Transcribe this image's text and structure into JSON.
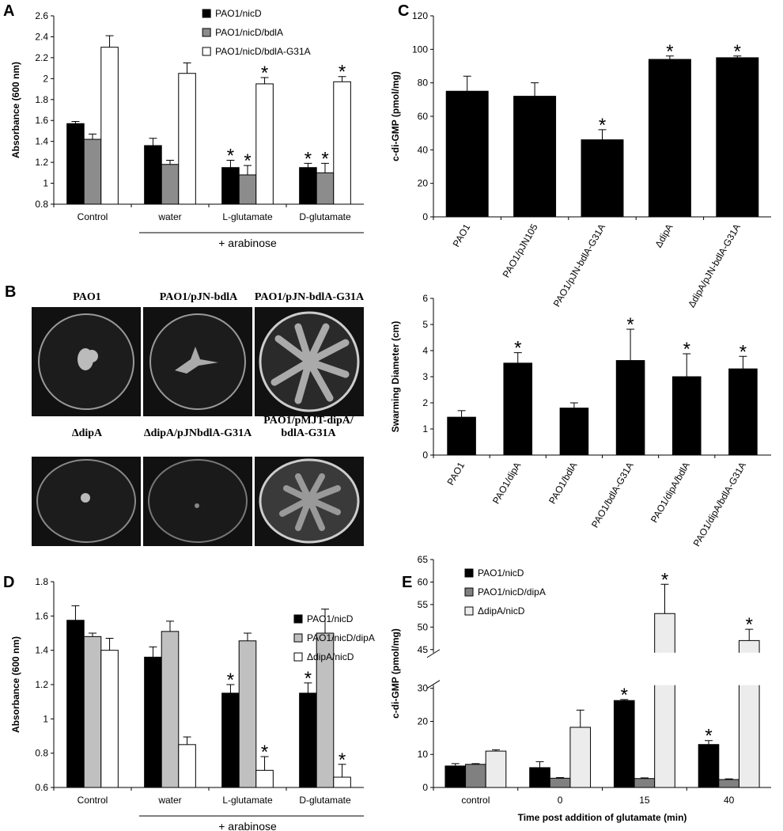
{
  "chart_data": [
    {
      "panel": "A",
      "type": "bar",
      "ylabel": "Absorbance (600 nm)",
      "categories": [
        "Control",
        "water",
        "L-glutamate",
        "D-glutamate"
      ],
      "group_label": "+ arabinose",
      "series": [
        {
          "name": "PAO1/nicD",
          "color": "#000000",
          "values": [
            1.57,
            1.36,
            1.15,
            1.15
          ],
          "errors": [
            0.02,
            0.07,
            0.07,
            0.04
          ],
          "significant": [
            false,
            false,
            true,
            true
          ]
        },
        {
          "name": "PAO1/nicD/bdlA",
          "color": "#8c8c8c",
          "values": [
            1.42,
            1.18,
            1.08,
            1.1
          ],
          "errors": [
            0.05,
            0.04,
            0.09,
            0.09
          ],
          "significant": [
            false,
            false,
            true,
            true
          ]
        },
        {
          "name": "PAO1/nicD/bdlA-G31A",
          "color": "#ffffff",
          "values": [
            2.3,
            2.05,
            1.95,
            1.97
          ],
          "errors": [
            0.11,
            0.1,
            0.06,
            0.05
          ],
          "significant": [
            false,
            false,
            true,
            true
          ]
        }
      ],
      "ylim": [
        0.8,
        2.6
      ],
      "yticks": [
        0.8,
        1,
        1.2,
        1.4,
        1.6,
        1.8,
        2,
        2.2,
        2.4,
        2.6
      ],
      "legend": "top-center",
      "significance_label": "*"
    },
    {
      "panel": "C",
      "type": "bar",
      "ylabel": "c-di-GMP (pmol/mg)",
      "categories": [
        "PAO1",
        "PAO1/pJN105",
        "PAO1/pJN-bdlA-G31A",
        "ΔdipA",
        "ΔdipA/pJN-bdlA-G31A"
      ],
      "values": [
        75,
        72,
        46,
        94,
        95
      ],
      "errors": [
        9,
        8,
        6,
        2,
        1
      ],
      "significant": [
        false,
        false,
        true,
        true,
        true
      ],
      "color": "#000000",
      "ylim": [
        0,
        120
      ],
      "yticks": [
        0,
        20,
        40,
        60,
        80,
        100,
        120
      ],
      "significance_label": "*"
    },
    {
      "type": "bar",
      "ylabel": "Swarming Diameter (cm)",
      "categories": [
        "PAO1",
        "PAO1/dipA",
        "PAO1/bdlA",
        "PAO1/bdlA-G31A",
        "PAO1/dipA/bdlA",
        "PAO1/dipA/bdlA-G31A"
      ],
      "values": [
        1.45,
        3.52,
        1.8,
        3.62,
        3.0,
        3.3
      ],
      "errors": [
        0.25,
        0.4,
        0.2,
        1.2,
        0.88,
        0.48
      ],
      "significant": [
        false,
        true,
        false,
        true,
        true,
        true
      ],
      "color": "#000000",
      "ylim": [
        0,
        6
      ],
      "yticks": [
        0,
        1,
        2,
        3,
        4,
        5,
        6
      ],
      "significance_label": "*"
    },
    {
      "panel": "D",
      "type": "bar",
      "ylabel": "Absorbance (600 nm)",
      "categories": [
        "Control",
        "water",
        "L-glutamate",
        "D-glutamate"
      ],
      "group_label": "+ arabinose",
      "series": [
        {
          "name": "PAO1/nicD",
          "color": "#000000",
          "values": [
            1.575,
            1.36,
            1.15,
            1.15
          ],
          "errors": [
            0.085,
            0.06,
            0.05,
            0.06
          ],
          "significant": [
            false,
            false,
            true,
            true
          ]
        },
        {
          "name": "PAO1/nicD/dipA",
          "color": "#c0c0c0",
          "values": [
            1.48,
            1.51,
            1.455,
            1.5
          ],
          "errors": [
            0.02,
            0.06,
            0.045,
            0.14
          ],
          "significant": [
            false,
            false,
            false,
            false
          ]
        },
        {
          "name": "ΔdipA/nicD",
          "color": "#ffffff",
          "values": [
            1.4,
            0.85,
            0.7,
            0.66
          ],
          "errors": [
            0.07,
            0.045,
            0.08,
            0.075
          ],
          "significant": [
            false,
            false,
            true,
            true
          ]
        }
      ],
      "ylim": [
        0.6,
        1.8
      ],
      "yticks": [
        0.6,
        0.8,
        1,
        1.2,
        1.4,
        1.6,
        1.8
      ],
      "legend": "right",
      "significance_label": "*"
    },
    {
      "panel": "E",
      "type": "bar",
      "ylabel": "c-di-GMP (pmol/mg)",
      "xlabel": "Time post addition of glutamate (min)",
      "categories": [
        "control",
        "0",
        "15",
        "40"
      ],
      "series": [
        {
          "name": "PAO1/nicD",
          "color": "#000000",
          "values": [
            6.5,
            6,
            26.3,
            13
          ],
          "errors": [
            0.7,
            1.8,
            0.3,
            1.2
          ],
          "significant": [
            false,
            false,
            true,
            true
          ]
        },
        {
          "name": "PAO1/nicD/dipA",
          "color": "#808080",
          "values": [
            7,
            2.8,
            2.7,
            2.4
          ],
          "errors": [
            0.2,
            0.2,
            0.2,
            0.2
          ],
          "significant": [
            false,
            false,
            false,
            false
          ]
        },
        {
          "name": "ΔdipA/nicD",
          "color": "#ececec",
          "values": [
            11,
            18.2,
            53,
            47
          ],
          "errors": [
            0.4,
            5.2,
            6.5,
            2.5
          ],
          "significant": [
            false,
            false,
            true,
            true
          ]
        }
      ],
      "ylim": [
        0,
        65
      ],
      "yticks": [
        0,
        10,
        20,
        30,
        45,
        50,
        55,
        60,
        65
      ],
      "axis_break": [
        30,
        45
      ],
      "legend": "top-left",
      "significance_label": "*"
    }
  ],
  "plates": {
    "panel": "B",
    "labels": [
      "PAO1",
      "PAO1/pJN-bdlA",
      "PAO1/pJN-bdlA-G31A",
      "ΔdipA",
      "ΔdipA/pJNbdlA-G31A",
      "PAO1/pMJT-dipA/ bdlA-G31A"
    ]
  }
}
